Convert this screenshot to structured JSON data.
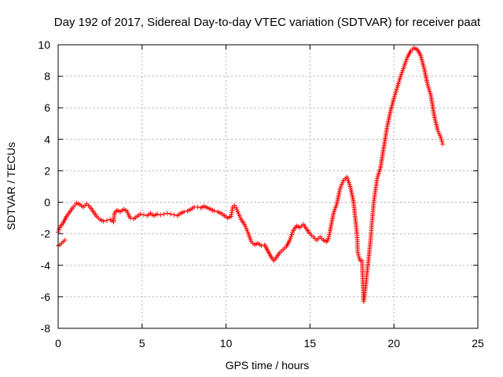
{
  "chart_data": {
    "type": "scatter",
    "title": "Day 192 of 2017, Sidereal Day-to-day VTEC variation (SDTVAR) for receiver paat",
    "xlabel": "GPS time / hours",
    "ylabel": "SDTVAR / TECUs",
    "xlim": [
      0,
      25
    ],
    "ylim": [
      -8,
      10
    ],
    "xticks": [
      0,
      5,
      10,
      15,
      20,
      25
    ],
    "yticks": [
      -8,
      -6,
      -4,
      -2,
      0,
      2,
      4,
      6,
      8,
      10
    ],
    "grid": true,
    "marker": "+",
    "color": "#ff0000",
    "series": [
      {
        "name": "paat",
        "x": [
          0.0,
          0.1,
          0.3,
          0.5,
          0.7,
          0.9,
          1.1,
          1.3,
          1.5,
          1.7,
          1.9,
          2.1,
          2.3,
          2.5,
          2.7,
          2.9,
          3.1,
          3.3,
          3.35,
          3.5,
          3.7,
          3.9,
          4.1,
          4.2,
          4.3,
          4.5,
          4.7,
          4.9,
          5.1,
          5.3,
          5.5,
          5.7,
          5.9,
          6.1,
          6.3,
          6.5,
          6.7,
          6.9,
          7.1,
          7.3,
          7.5,
          7.7,
          7.9,
          8.1,
          8.3,
          8.5,
          8.7,
          8.9,
          9.1,
          9.3,
          9.5,
          9.7,
          9.9,
          10.1,
          10.3,
          10.4,
          10.5,
          10.6,
          10.7,
          10.9,
          11.1,
          11.3,
          11.5,
          11.7,
          11.9,
          12.1,
          12.3,
          12.5,
          12.7,
          12.85,
          13.0,
          13.2,
          13.4,
          13.6,
          13.8,
          14.0,
          14.2,
          14.4,
          14.6,
          14.8,
          15.0,
          15.2,
          15.4,
          15.6,
          15.8,
          16.0,
          16.1,
          16.2,
          16.4,
          16.6,
          16.8,
          17.0,
          17.2,
          17.4,
          17.6,
          17.8,
          17.85,
          17.95,
          18.0,
          18.1,
          18.2,
          18.3,
          18.4,
          18.5,
          18.6,
          18.7,
          18.8,
          19.0,
          19.2,
          19.4,
          19.6,
          19.8,
          20.0,
          20.2,
          20.4,
          20.6,
          20.8,
          21.0,
          21.2,
          21.4,
          21.6,
          21.8,
          22.0,
          22.2,
          22.4,
          22.6,
          22.8,
          22.9
        ],
        "y": [
          -1.9,
          -1.6,
          -1.3,
          -0.9,
          -0.6,
          -0.3,
          -0.05,
          -0.15,
          -0.3,
          -0.1,
          -0.3,
          -0.6,
          -0.9,
          -1.1,
          -1.2,
          -1.15,
          -1.1,
          -1.25,
          -0.7,
          -0.5,
          -0.6,
          -0.45,
          -0.55,
          -0.8,
          -1.0,
          -1.05,
          -0.9,
          -0.75,
          -0.8,
          -0.85,
          -0.7,
          -0.85,
          -0.75,
          -0.8,
          -0.75,
          -0.7,
          -0.75,
          -0.8,
          -0.85,
          -0.7,
          -0.6,
          -0.55,
          -0.45,
          -0.3,
          -0.3,
          -0.35,
          -0.25,
          -0.35,
          -0.45,
          -0.55,
          -0.6,
          -0.7,
          -0.85,
          -1.0,
          -0.9,
          -0.3,
          -0.2,
          -0.35,
          -0.6,
          -1.1,
          -1.4,
          -1.9,
          -2.5,
          -2.7,
          -2.6,
          -2.75,
          -2.7,
          -3.1,
          -3.5,
          -3.7,
          -3.5,
          -3.2,
          -3.0,
          -2.8,
          -2.4,
          -1.8,
          -1.5,
          -1.6,
          -1.4,
          -1.7,
          -2.0,
          -2.2,
          -2.4,
          -2.2,
          -2.4,
          -2.5,
          -2.3,
          -1.8,
          -0.7,
          -0.1,
          0.9,
          1.4,
          1.6,
          1.0,
          0.0,
          -2.0,
          -3.2,
          -3.6,
          -3.7,
          -3.7,
          -6.3,
          -5.5,
          -4.5,
          -3.5,
          -2.5,
          -1.2,
          0.0,
          1.5,
          2.2,
          3.5,
          4.8,
          5.8,
          6.6,
          7.3,
          8.0,
          8.6,
          9.2,
          9.6,
          9.8,
          9.7,
          9.3,
          8.5,
          7.5,
          6.8,
          5.5,
          4.6,
          4.1,
          3.7
        ],
        "x2": [
          0.0,
          0.1,
          0.2,
          0.3,
          0.4
        ],
        "y2": [
          -2.75,
          -2.7,
          -2.6,
          -2.5,
          -2.4
        ]
      }
    ]
  }
}
